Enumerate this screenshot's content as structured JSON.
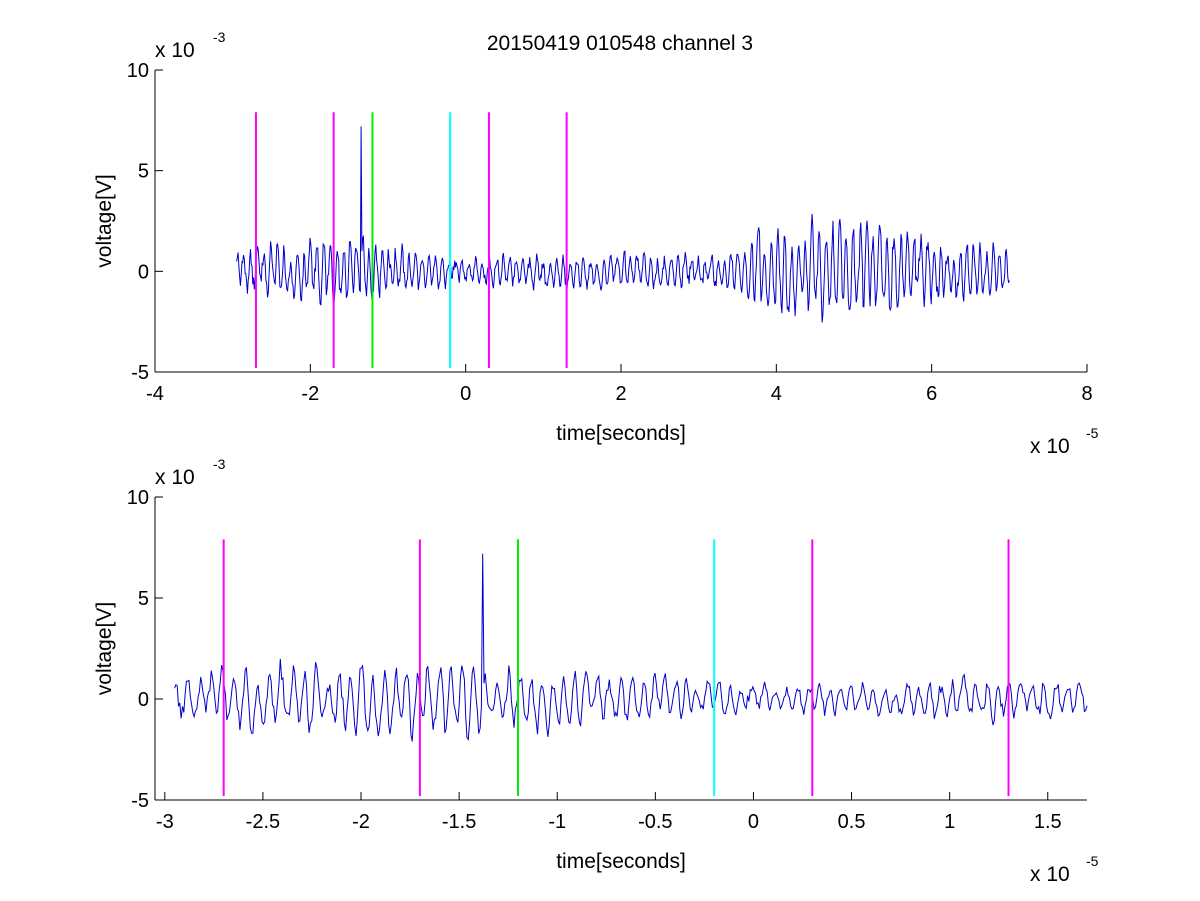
{
  "figure": {
    "title": "20150419 010548 channel 3"
  },
  "colors": {
    "signal": "#0000cc",
    "magenta": "#ff00ff",
    "green": "#00ee00",
    "cyan": "#00ffff",
    "axis": "#000000"
  },
  "chart_data": [
    {
      "type": "line",
      "title": "20150419 010548 channel 3",
      "xlabel": "time[seconds]",
      "ylabel": "voltage[V]",
      "x_exponent_label": "x 10",
      "x_exponent": "-5",
      "y_exponent_label": "x 10",
      "y_exponent": "-3",
      "xlim": [
        -4,
        8
      ],
      "ylim": [
        -5,
        10
      ],
      "xticks": [
        -4,
        -2,
        0,
        2,
        4,
        6,
        8
      ],
      "xtick_labels": [
        "-4",
        "-2",
        "0",
        "2",
        "4",
        "6",
        "8"
      ],
      "yticks": [
        -5,
        0,
        5,
        10
      ],
      "ytick_labels": [
        "-5",
        "0",
        "5",
        "10"
      ],
      "grid": false,
      "series": [
        {
          "style": "signal",
          "x_range": [
            -2.95,
            7.0
          ],
          "sample_count": 1000,
          "envelope": [
            [
              -2.95,
              0.9
            ],
            [
              -2.0,
              1.3
            ],
            [
              -1.5,
              1.5
            ],
            [
              -1.2,
              1.3
            ],
            [
              -0.5,
              0.7
            ],
            [
              0.0,
              0.6
            ],
            [
              1.0,
              0.6
            ],
            [
              2.0,
              0.8
            ],
            [
              3.0,
              0.7
            ],
            [
              3.5,
              0.7
            ],
            [
              3.8,
              1.7
            ],
            [
              4.5,
              1.9
            ],
            [
              5.0,
              2.0
            ],
            [
              5.6,
              1.8
            ],
            [
              6.0,
              1.4
            ],
            [
              7.0,
              1.1
            ]
          ],
          "spike": {
            "x": -1.35,
            "y": 7.2
          }
        }
      ],
      "markers": [
        {
          "x": -2.7,
          "color": "magenta",
          "y_range": [
            -4.8,
            7.9
          ]
        },
        {
          "x": -1.7,
          "color": "magenta",
          "y_range": [
            -4.8,
            7.9
          ]
        },
        {
          "x": -1.2,
          "color": "green",
          "y_range": [
            -4.8,
            7.9
          ]
        },
        {
          "x": -0.2,
          "color": "cyan",
          "y_range": [
            -4.8,
            7.9
          ]
        },
        {
          "x": 0.3,
          "color": "magenta",
          "y_range": [
            -4.8,
            7.9
          ]
        },
        {
          "x": 1.3,
          "color": "magenta",
          "y_range": [
            -4.8,
            7.9
          ]
        }
      ]
    },
    {
      "type": "line",
      "title": "",
      "xlabel": "time[seconds]",
      "ylabel": "voltage[V]",
      "x_exponent_label": "x 10",
      "x_exponent": "-5",
      "y_exponent_label": "x 10",
      "y_exponent": "-3",
      "xlim": [
        -3.05,
        1.7
      ],
      "ylim": [
        -5,
        10
      ],
      "xticks": [
        -3,
        -2.5,
        -2,
        -1.5,
        -1,
        -0.5,
        0,
        0.5,
        1,
        1.5
      ],
      "xtick_labels": [
        "-3",
        "-2.5",
        "-2",
        "-1.5",
        "-1",
        "-0.5",
        "0",
        "0.5",
        "1",
        "1.5"
      ],
      "yticks": [
        -5,
        0,
        5,
        10
      ],
      "ytick_labels": [
        "-5",
        "0",
        "5",
        "10"
      ],
      "grid": false,
      "series": [
        {
          "style": "signal",
          "x_range": [
            -2.95,
            1.7
          ],
          "sample_count": 700,
          "envelope": [
            [
              -2.95,
              0.8
            ],
            [
              -2.6,
              1.4
            ],
            [
              -2.0,
              1.3
            ],
            [
              -1.5,
              1.6
            ],
            [
              -1.2,
              1.4
            ],
            [
              -0.8,
              1.1
            ],
            [
              -0.5,
              0.9
            ],
            [
              -0.2,
              0.6
            ],
            [
              0.3,
              0.6
            ],
            [
              0.8,
              0.7
            ],
            [
              1.3,
              0.9
            ],
            [
              1.7,
              0.8
            ]
          ],
          "spike": {
            "x": -1.38,
            "y": 7.2
          }
        }
      ],
      "markers": [
        {
          "x": -2.7,
          "color": "magenta",
          "y_range": [
            -4.8,
            7.9
          ]
        },
        {
          "x": -1.7,
          "color": "magenta",
          "y_range": [
            -4.8,
            7.9
          ]
        },
        {
          "x": -1.2,
          "color": "green",
          "y_range": [
            -4.8,
            7.9
          ]
        },
        {
          "x": -0.2,
          "color": "cyan",
          "y_range": [
            -4.8,
            7.9
          ]
        },
        {
          "x": 0.3,
          "color": "magenta",
          "y_range": [
            -4.8,
            7.9
          ]
        },
        {
          "x": 1.3,
          "color": "magenta",
          "y_range": [
            -4.8,
            7.9
          ]
        }
      ]
    }
  ]
}
